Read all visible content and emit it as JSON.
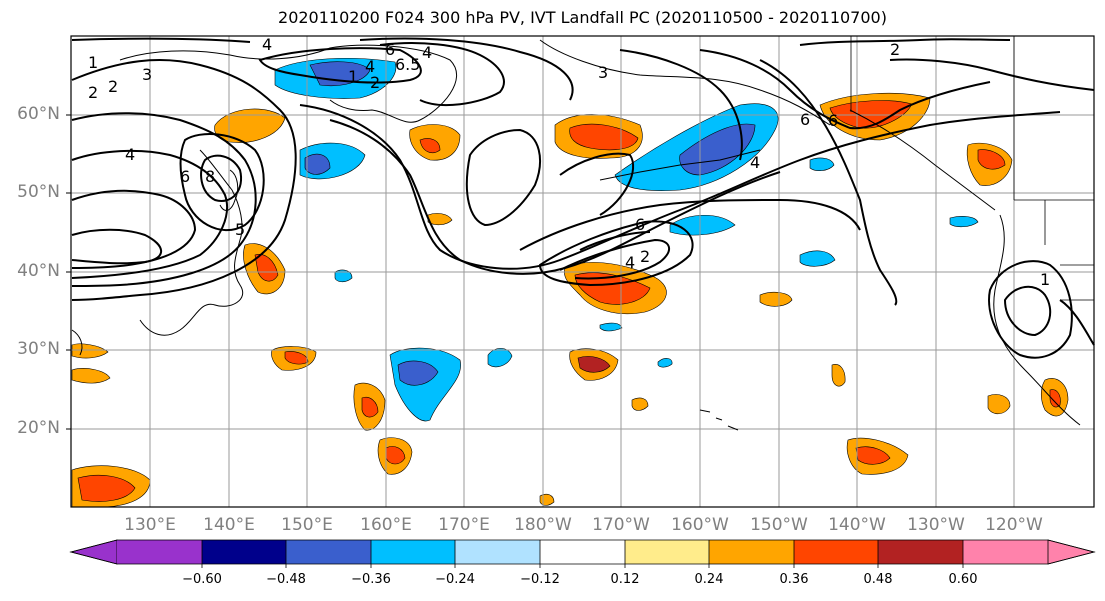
{
  "title": "2020110200 F024 300 hPa PV, IVT Landfall PC (2020110500 - 2020110700)",
  "lat_labels": [
    "60°N",
    "50°N",
    "40°N",
    "30°N",
    "20°N"
  ],
  "lon_labels": [
    "130°E",
    "140°E",
    "150°E",
    "160°E",
    "170°E",
    "180°W",
    "170°W",
    "160°W",
    "150°W",
    "140°W",
    "130°W",
    "120°W"
  ],
  "contour_labels": [
    "4",
    "1",
    "2",
    "3",
    "6",
    "8",
    "6.5",
    "4",
    "2",
    "6",
    "4",
    "5",
    "6",
    "4",
    "6",
    "2",
    "4",
    "6",
    "3",
    "2",
    "1",
    "1",
    "2",
    "4"
  ],
  "colorbar": {
    "colors": [
      "#9932cc",
      "#00008b",
      "#3a5fcd",
      "#00bfff",
      "#b0e2ff",
      "#ffffff",
      "#ffec8b",
      "#ffa500",
      "#ff4500",
      "#b22222",
      "#ff82ab"
    ],
    "ticks": [
      "−0.60",
      "−0.48",
      "−0.36",
      "−0.24",
      "−0.12",
      "0.12",
      "0.24",
      "0.36",
      "0.48",
      "0.60"
    ]
  }
}
